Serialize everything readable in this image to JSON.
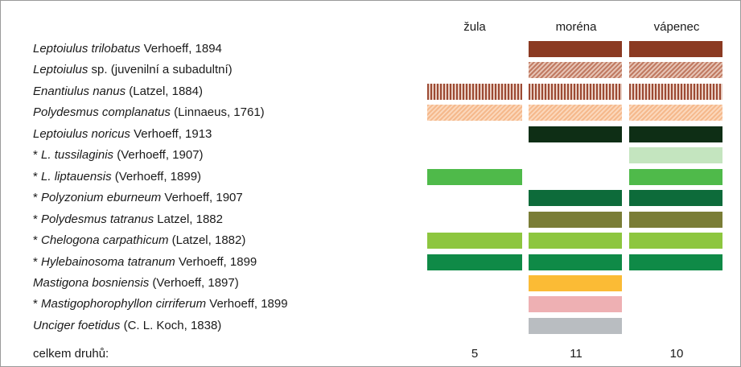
{
  "header": {
    "columns": [
      "žula",
      "moréna",
      "vápenec"
    ]
  },
  "rows": [
    {
      "italic": "Leptoiulus trilobatus",
      "rest": " Verhoeff, 1894",
      "present": [
        false,
        true,
        true
      ],
      "color": "#8b3a22"
    },
    {
      "italic": "Leptoiulus",
      "rest": " sp. (juvenilní a subadultní)",
      "present": [
        false,
        true,
        true
      ],
      "color": "#c07a62",
      "color2": "#e6c3b4",
      "pattern": "diagonal"
    },
    {
      "italic": "Enantiulus nanus",
      "rest": " (Latzel, 1884)",
      "present": [
        true,
        true,
        true
      ],
      "color": "#9c4a33",
      "color2": "#e9cfc4",
      "pattern": "vertical"
    },
    {
      "italic": "Polydesmus complanatus",
      "rest": " (Linnaeus, 1761)",
      "present": [
        true,
        true,
        true
      ],
      "color": "#f5b98c",
      "color2": "#fbd7bb",
      "pattern": "diagonal"
    },
    {
      "italic": "Leptoiulus noricus",
      "rest": " Verhoeff, 1913",
      "present": [
        false,
        true,
        true
      ],
      "color": "#0e2e15"
    },
    {
      "marker": "* ",
      "italic": "L. tussilaginis",
      "rest": " (Verhoeff, 1907)",
      "present": [
        false,
        false,
        true
      ],
      "color": "#c4e5bf"
    },
    {
      "marker": "* ",
      "italic": "L. liptauensis",
      "rest": " (Verhoeff, 1899)",
      "present": [
        true,
        false,
        true
      ],
      "color": "#4fba4a"
    },
    {
      "marker": "* ",
      "italic": "Polyzonium eburneum",
      "rest": " Verhoeff, 1907",
      "present": [
        false,
        true,
        true
      ],
      "color": "#0d6b3a"
    },
    {
      "marker": "* ",
      "italic": "Polydesmus tatranus",
      "rest": " Latzel, 1882",
      "present": [
        false,
        true,
        true
      ],
      "color": "#7a7d36"
    },
    {
      "marker": "* ",
      "italic": "Chelogona carpathicum",
      "rest": " (Latzel, 1882)",
      "present": [
        true,
        true,
        true
      ],
      "color": "#8dc63f"
    },
    {
      "marker": "* ",
      "italic": "Hylebainosoma tatranum",
      "rest": " Verhoeff, 1899",
      "present": [
        true,
        true,
        true
      ],
      "color": "#0f8a47"
    },
    {
      "italic": "Mastigona bosniensis",
      "rest": " (Verhoeff, 1897)",
      "present": [
        false,
        true,
        false
      ],
      "color": "#fbbb35"
    },
    {
      "marker": "* ",
      "italic": "Mastigophorophyllon cirriferum",
      "rest": " Verhoeff, 1899",
      "present": [
        false,
        true,
        false
      ],
      "color": "#eeb0b3"
    },
    {
      "italic": "Unciger foetidus",
      "rest": " (C. L. Koch, 1838)",
      "present": [
        false,
        true,
        false
      ],
      "color": "#b9bdc1"
    }
  ],
  "footer": {
    "label": "celkem druhů:",
    "totals": [
      "5",
      "11",
      "10"
    ]
  }
}
